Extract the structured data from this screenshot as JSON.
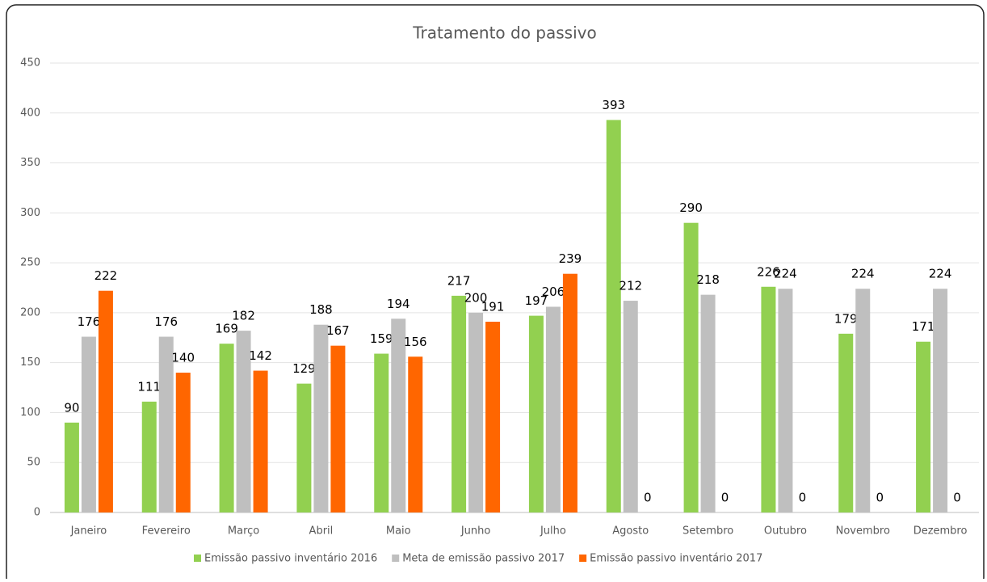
{
  "chart_data": {
    "type": "bar",
    "title": "Tratamento do passivo",
    "categories": [
      "Janeiro",
      "Fevereiro",
      "Março",
      "Abril",
      "Maio",
      "Junho",
      "Julho",
      "Agosto",
      "Setembro",
      "Outubro",
      "Novembro",
      "Dezembro"
    ],
    "series": [
      {
        "name": "Emissão passivo inventário 2016",
        "color": "#92d050",
        "values": [
          90,
          111,
          169,
          129,
          159,
          217,
          197,
          393,
          290,
          226,
          179,
          171
        ]
      },
      {
        "name": "Meta de emissão passivo 2017",
        "color": "#bfbfbf",
        "values": [
          176,
          176,
          182,
          188,
          194,
          200,
          206,
          212,
          218,
          224,
          224,
          224
        ]
      },
      {
        "name": "Emissão passivo inventário 2017",
        "color": "#ff6600",
        "values": [
          222,
          140,
          142,
          167,
          156,
          191,
          239,
          0,
          0,
          0,
          0,
          0
        ]
      }
    ],
    "ylim": [
      0,
      450
    ],
    "yticks": [
      0,
      50,
      100,
      150,
      200,
      250,
      300,
      350,
      400,
      450
    ],
    "grid": true,
    "legend": "bottom"
  }
}
